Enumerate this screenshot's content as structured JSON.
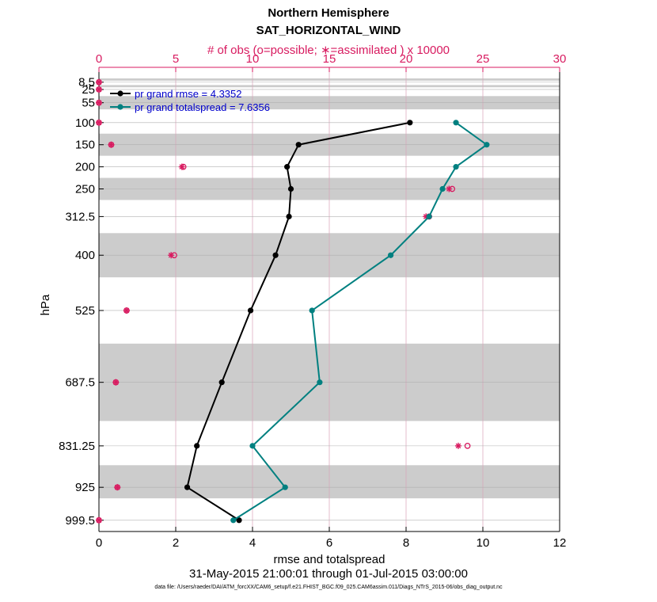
{
  "chart_data": {
    "type": "line",
    "title": "Northern Hemisphere",
    "subtitle": "SAT_HORIZONTAL_WIND",
    "top_axis_label": "# of obs (o=possible; ∗=assimilated ) x 10000",
    "xlabel": "rmse and totalspread",
    "ylabel": "hPa",
    "time_range": "31-May-2015 21:00:01 through 01-Jul-2015 03:00:00",
    "data_file": "data file: /Users/raeder/DAI/ATM_forcXX/CAM6_setup/f.e21.FHIST_BGC.f09_025.CAM6assim.011/Diags_NTrS_2015-06/obs_diag_output.nc",
    "xlim": [
      0,
      12
    ],
    "xticks": [
      0,
      2,
      4,
      6,
      8,
      10,
      12
    ],
    "top_xlim": [
      0,
      30
    ],
    "top_xticks": [
      0,
      5,
      10,
      15,
      20,
      25,
      30
    ],
    "levels": [
      "8.5",
      "25",
      "55",
      "100",
      "150",
      "200",
      "250",
      "312.5",
      "400",
      "525",
      "687.5",
      "831.25",
      "925",
      "999.5"
    ],
    "level_values": [
      8.5,
      25,
      55,
      100,
      150,
      200,
      250,
      312.5,
      400,
      525,
      687.5,
      831.25,
      925,
      999.5
    ],
    "ylim_hPa": [
      0,
      1025
    ],
    "shaded_bands_hPa": [
      [
        0,
        5
      ],
      [
        15,
        20
      ],
      [
        40,
        70
      ],
      [
        125,
        175
      ],
      [
        225,
        275
      ],
      [
        350,
        450
      ],
      [
        600,
        775
      ],
      [
        875,
        950
      ]
    ],
    "legend_location": "top-left",
    "series": [
      {
        "name": "pr grand rmse = 4.3352",
        "color": "#000000",
        "values": [
          null,
          null,
          null,
          8.1,
          5.2,
          4.9,
          5.0,
          4.95,
          4.6,
          3.95,
          3.2,
          2.55,
          2.3,
          3.65
        ]
      },
      {
        "name": "pr grand totalspread = 7.6356",
        "color": "#008080",
        "values": [
          null,
          null,
          null,
          9.3,
          10.1,
          9.3,
          8.95,
          8.6,
          7.6,
          5.55,
          5.75,
          4.0,
          4.85,
          3.5
        ]
      }
    ],
    "obs_possible_x10000": [
      0,
      0,
      0,
      0,
      0.8,
      5.5,
      23.0,
      21.5,
      4.9,
      1.8,
      1.1,
      24.0,
      1.2,
      0
    ],
    "obs_assimilated_x10000": [
      0,
      0,
      0,
      0,
      0.8,
      5.4,
      22.8,
      21.3,
      4.7,
      1.8,
      1.1,
      23.4,
      1.2,
      0
    ]
  }
}
